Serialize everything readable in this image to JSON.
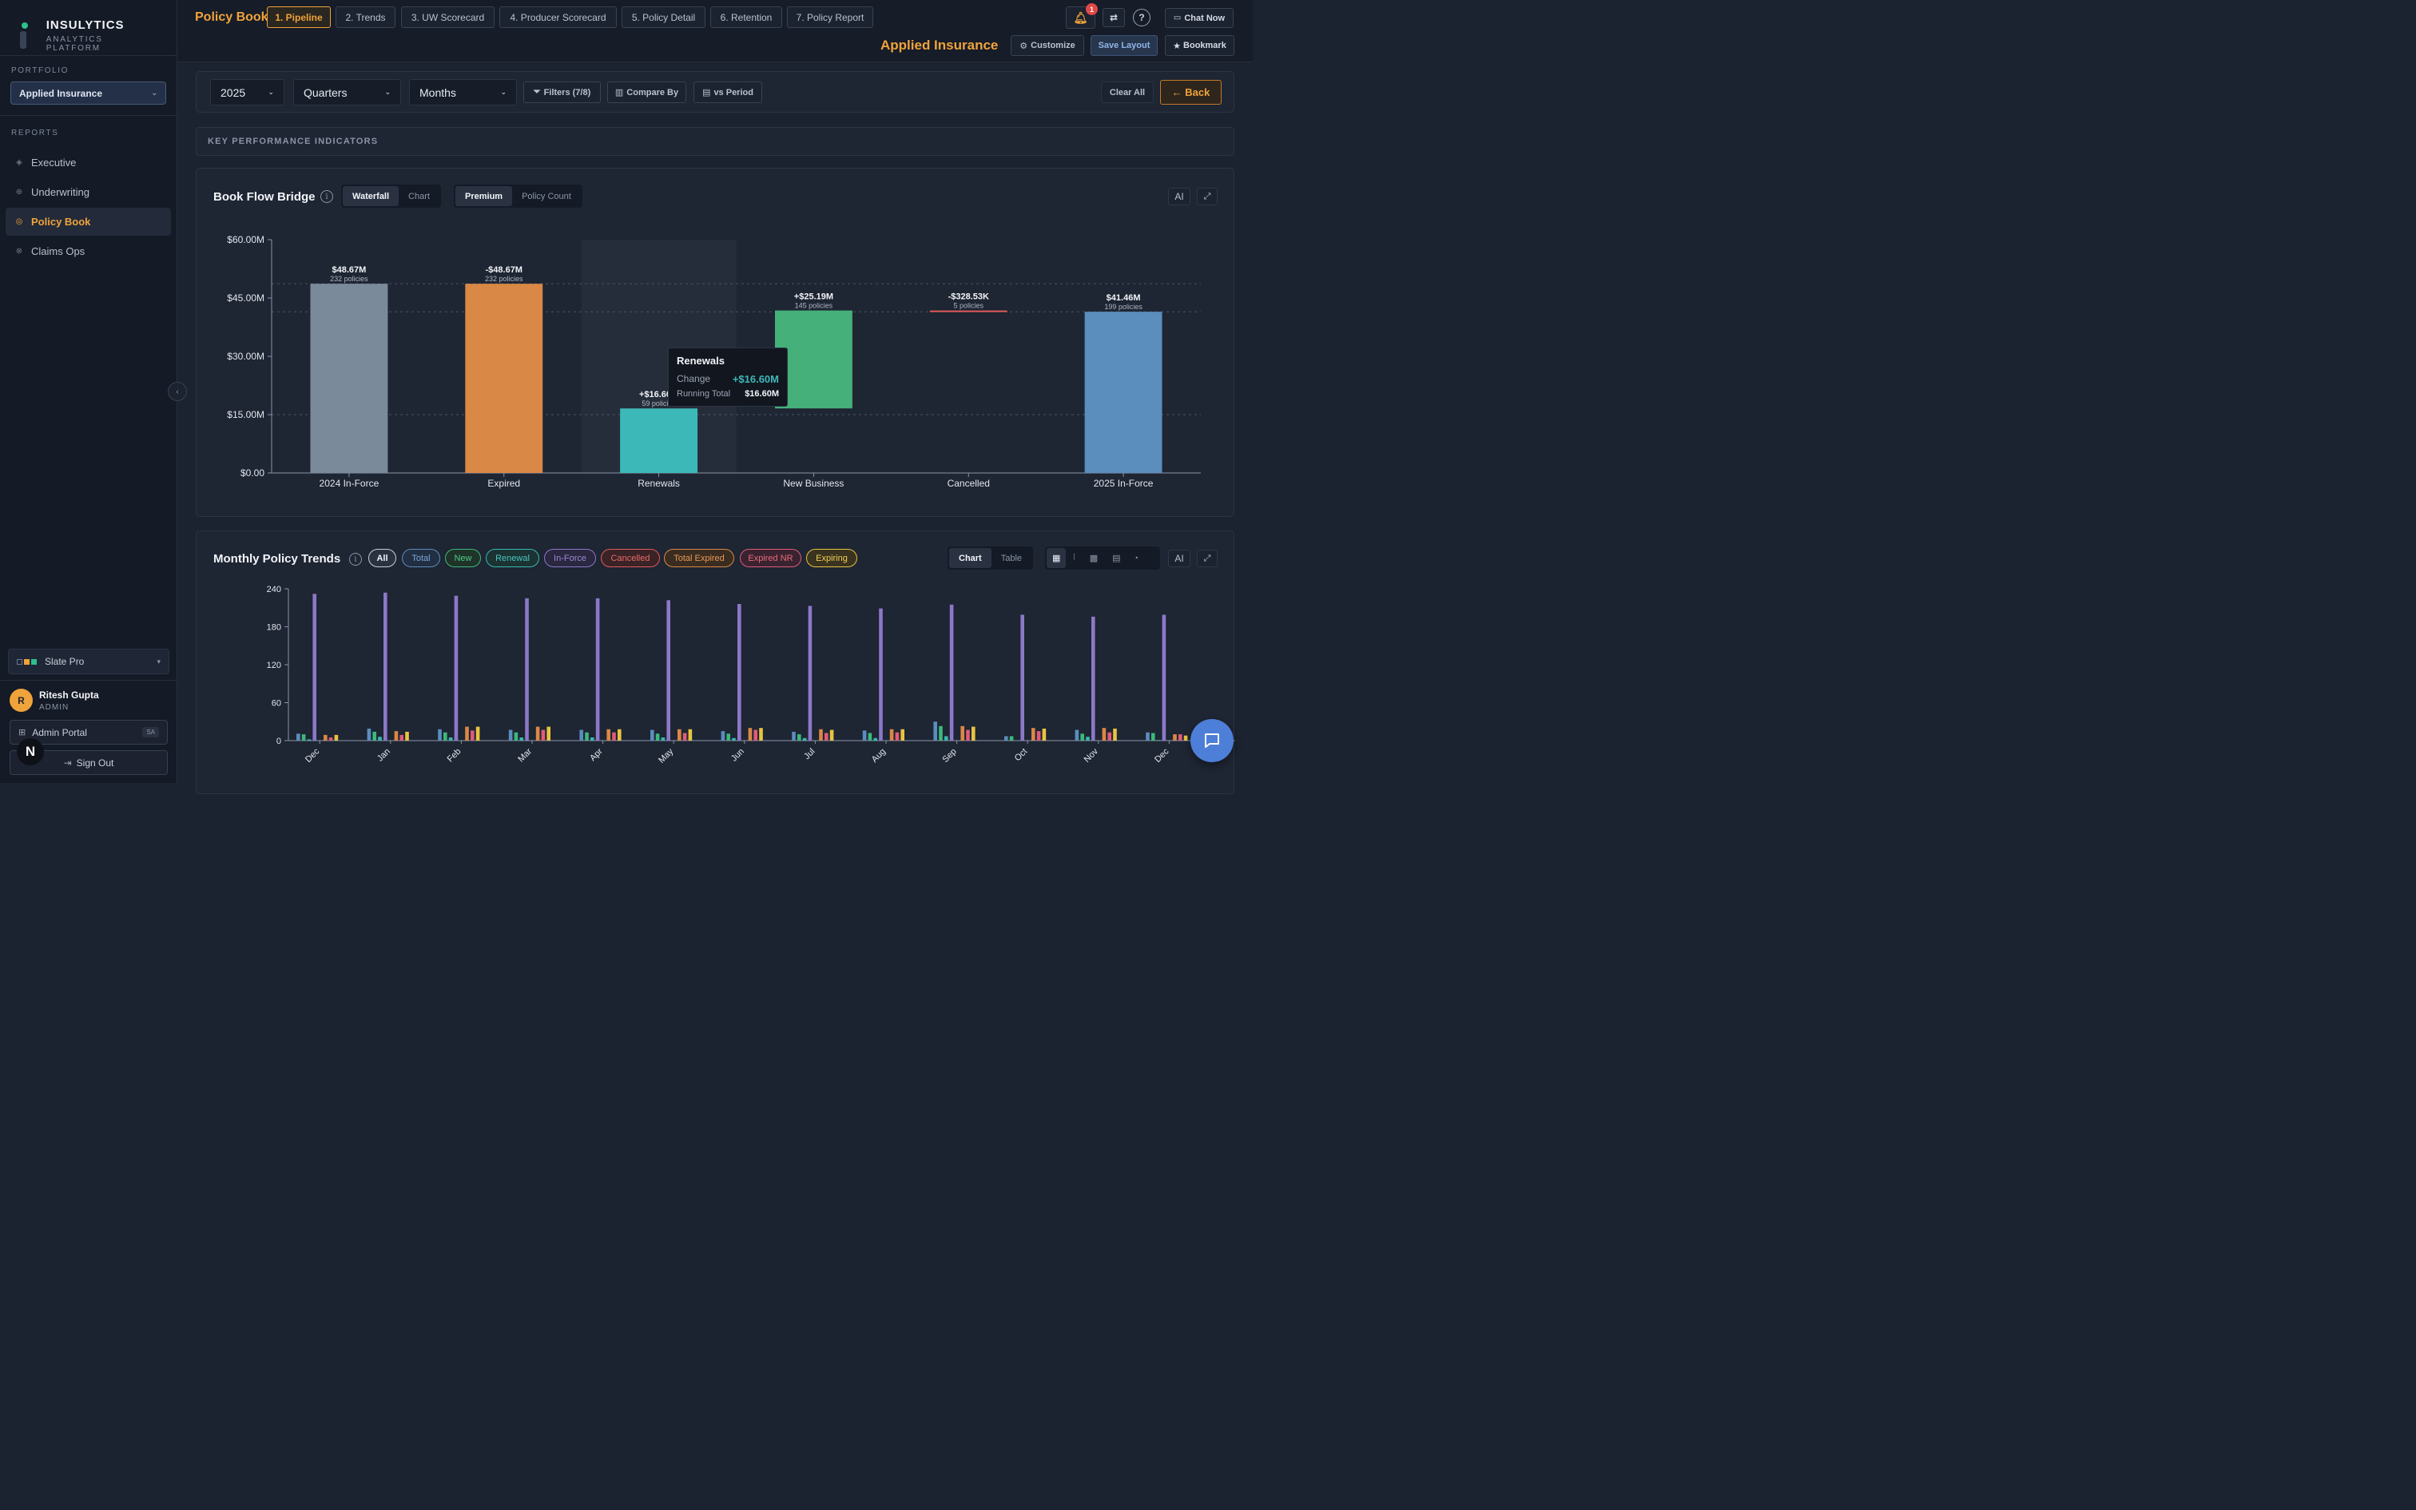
{
  "brand": {
    "name": "INSULYTICS",
    "subtitle": "ANALYTICS PLATFORM"
  },
  "sidebar": {
    "portfolio_label": "PORTFOLIO",
    "portfolio_value": "Applied Insurance",
    "reports_label": "REPORTS",
    "items": [
      {
        "label": "Executive",
        "icon": "diamond-icon"
      },
      {
        "label": "Underwriting",
        "icon": "circle-dot-icon"
      },
      {
        "label": "Policy Book",
        "icon": "target-icon"
      },
      {
        "label": "Claims Ops",
        "icon": "circle-dot-icon"
      }
    ],
    "theme": "Slate Pro",
    "user": {
      "initial": "R",
      "name": "Ritesh Gupta",
      "role": "ADMIN"
    },
    "admin_portal": "Admin Portal",
    "admin_badge": "SA",
    "sign_out": "Sign Out",
    "n_badge": "N"
  },
  "header": {
    "page_title": "Policy Book",
    "tabs": [
      "1. Pipeline",
      "2. Trends",
      "3. UW Scorecard",
      "4. Producer Scorecard",
      "5. Policy Detail",
      "6. Retention",
      "7. Policy Report"
    ],
    "notification_count": "1",
    "help": "?",
    "chat_now": "Chat Now",
    "company": "Applied Insurance",
    "customize": "Customize",
    "save_layout": "Save Layout",
    "bookmark": "Bookmark"
  },
  "filters": {
    "year": "2025",
    "quarters": "Quarters",
    "months": "Months",
    "filters_btn": "Filters (7/8)",
    "compare_by": "Compare By",
    "vs_period": "vs Period",
    "clear_all": "Clear All",
    "back": "← Back"
  },
  "kpi_header": "KEY PERFORMANCE INDICATORS",
  "bridge": {
    "title": "Book Flow Bridge",
    "view_toggle": [
      "Waterfall",
      "Chart"
    ],
    "metric_toggle": [
      "Premium",
      "Policy Count"
    ],
    "ai": "AI",
    "tooltip": {
      "title": "Renewals",
      "change_label": "Change",
      "change_value": "+$16.60M",
      "running_label": "Running Total",
      "running_value": "$16.60M"
    }
  },
  "trends": {
    "title": "Monthly Policy Trends",
    "filters": [
      "All",
      "Total",
      "New",
      "Renewal",
      "In-Force",
      "Cancelled",
      "Total Expired",
      "Expired NR",
      "Expiring"
    ],
    "view_toggle": [
      "Chart",
      "Table"
    ],
    "ai": "AI"
  },
  "colors": {
    "accent": "#f0a33a",
    "gray_bar": "#7b8a9a",
    "orange_bar": "#d98845",
    "teal_bar": "#3db8b8",
    "green_bar": "#45b07a",
    "red_bar": "#e05a5a",
    "blue_bar": "#5b8dbd",
    "in_force": "#8c78c8"
  },
  "chart_data": [
    {
      "type": "bar",
      "subtype": "waterfall",
      "title": "Book Flow Bridge",
      "categories": [
        "2024 In-Force",
        "Expired",
        "Renewals",
        "New Business",
        "Cancelled",
        "2025 In-Force"
      ],
      "values": [
        48.67,
        -48.67,
        16.6,
        25.19,
        -0.32853,
        41.46
      ],
      "value_labels": [
        "$48.67M",
        "-$48.67M",
        "+$16.60M",
        "+$25.19M",
        "-$328.53K",
        "$41.46M"
      ],
      "policy_labels": [
        "232 policies",
        "232 policies",
        "59 policies",
        "145 policies",
        "5 policies",
        "199 policies"
      ],
      "ylim": [
        0,
        60
      ],
      "yticks": [
        "$0.00",
        "$15.00M",
        "$30.00M",
        "$45.00M",
        "$60.00M"
      ],
      "highlighted": "Renewals"
    },
    {
      "type": "bar",
      "title": "Monthly Policy Trends",
      "categories": [
        "Dec",
        "Jan",
        "Feb",
        "Mar",
        "Apr",
        "May",
        "Jun",
        "Jul",
        "Aug",
        "Sep",
        "Oct",
        "Nov",
        "Dec"
      ],
      "ylim": [
        0,
        240
      ],
      "yticks": [
        "0",
        "60",
        "120",
        "180",
        "240"
      ],
      "series": [
        {
          "name": "Total",
          "color": "#5b8dbd",
          "values": [
            11,
            19,
            18,
            17,
            17,
            17,
            15,
            14,
            16,
            30,
            7,
            17,
            13
          ]
        },
        {
          "name": "New",
          "color": "#3db87a",
          "values": [
            10,
            14,
            13,
            13,
            13,
            11,
            11,
            10,
            12,
            23,
            7,
            11,
            12
          ]
        },
        {
          "name": "Renewal",
          "color": "#3ab8b0",
          "values": [
            2,
            6,
            5,
            5,
            5,
            5,
            4,
            4,
            4,
            7,
            0,
            6,
            1
          ]
        },
        {
          "name": "In-Force",
          "color": "#8c78c8",
          "values": [
            232,
            234,
            229,
            225,
            225,
            222,
            216,
            213,
            209,
            215,
            199,
            196,
            199
          ]
        },
        {
          "name": "Cancelled",
          "color": "#e05a5a",
          "values": [
            0,
            0,
            0,
            0,
            0,
            0,
            0,
            0,
            0,
            0,
            0,
            0,
            0
          ]
        },
        {
          "name": "Total Expired",
          "color": "#d98845",
          "values": [
            9,
            15,
            22,
            22,
            18,
            18,
            20,
            18,
            18,
            23,
            20,
            20,
            10
          ]
        },
        {
          "name": "Expired NR",
          "color": "#e05a7a",
          "values": [
            5,
            9,
            16,
            17,
            13,
            12,
            17,
            12,
            13,
            17,
            15,
            13,
            10
          ]
        },
        {
          "name": "Expiring",
          "color": "#e8c440",
          "values": [
            9,
            14,
            22,
            22,
            18,
            18,
            20,
            17,
            18,
            22,
            19,
            19,
            8
          ]
        }
      ]
    }
  ]
}
